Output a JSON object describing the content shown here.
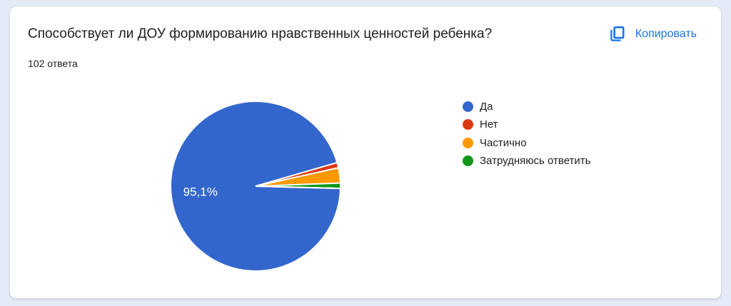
{
  "page": {
    "background_color": "#e4ebf7"
  },
  "card": {
    "title": "Способствует ли ДОУ формированию нравственных ценностей ребенка?",
    "responses_label": "102 ответа",
    "copy_button": {
      "label": "Копировать",
      "color": "#1a73e8",
      "icon": "copy-icon"
    }
  },
  "chart_data": {
    "type": "pie",
    "title": "Способствует ли ДОУ формированию нравственных ценностей ребенка?",
    "subtitle": "102 ответа",
    "total_responses": 102,
    "legend_position": "right",
    "start_angle_deg_from_3oclock_clockwise": 1.5,
    "categories": [
      "Да",
      "Нет",
      "Частично",
      "Затрудняюсь ответить"
    ],
    "values_pct": [
      95.1,
      1.0,
      2.9,
      1.0
    ],
    "colors": [
      "#3366cc",
      "#dc3912",
      "#ff9900",
      "#109618"
    ],
    "slice_labels": [
      "95,1%",
      "",
      "",
      ""
    ],
    "slice_label_color": "#ffffff",
    "separator_color": "#ffffff"
  }
}
